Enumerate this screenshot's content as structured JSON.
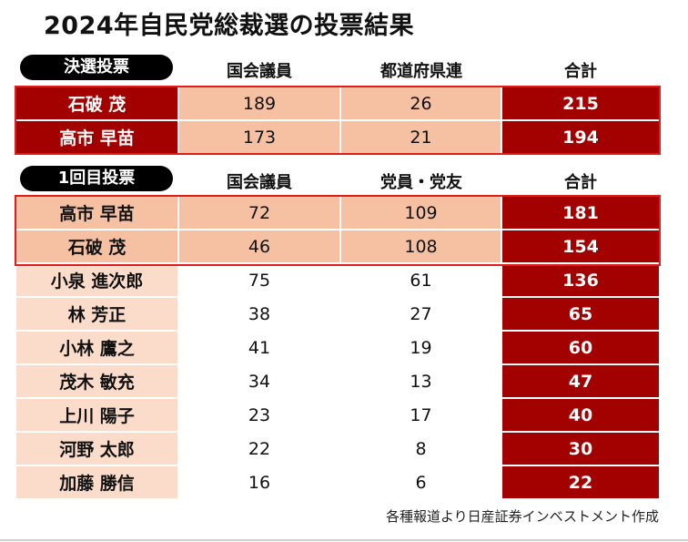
{
  "title": "2024年自民党総裁選の投票結果",
  "colors": {
    "dark_red": "#a30000",
    "peach": "#f6c1a2",
    "light_peach": "#fbdccb",
    "frame_red": "#e21b1b"
  },
  "runoff": {
    "label": "決選投票",
    "headers": [
      "国会議員",
      "都道府県連",
      "合計"
    ]
  },
  "first": {
    "label": "1回目投票",
    "headers": [
      "国会議員",
      "党員・党友",
      "合計"
    ]
  },
  "source": "各種報道より日産証券インベストメント作成",
  "chart_data": {
    "type": "table",
    "title": "2024年自民党総裁選の投票結果",
    "tables": [
      {
        "label": "決選投票",
        "columns": [
          "国会議員",
          "都道府県連",
          "合計"
        ],
        "rows": [
          {
            "name": "石破 茂",
            "values": [
              189,
              26,
              215
            ]
          },
          {
            "name": "高市 早苗",
            "values": [
              173,
              21,
              194
            ]
          }
        ]
      },
      {
        "label": "1回目投票",
        "columns": [
          "国会議員",
          "党員・党友",
          "合計"
        ],
        "rows": [
          {
            "name": "高市 早苗",
            "values": [
              72,
              109,
              181
            ]
          },
          {
            "name": "石破 茂",
            "values": [
              46,
              108,
              154
            ]
          },
          {
            "name": "小泉 進次郎",
            "values": [
              75,
              61,
              136
            ]
          },
          {
            "name": "林 芳正",
            "values": [
              38,
              27,
              65
            ]
          },
          {
            "name": "小林 鷹之",
            "values": [
              41,
              19,
              60
            ]
          },
          {
            "name": "茂木 敏充",
            "values": [
              34,
              13,
              47
            ]
          },
          {
            "name": "上川 陽子",
            "values": [
              23,
              17,
              40
            ]
          },
          {
            "name": "河野 太郎",
            "values": [
              22,
              8,
              30
            ]
          },
          {
            "name": "加藤 勝信",
            "values": [
              16,
              6,
              22
            ]
          }
        ]
      }
    ]
  }
}
